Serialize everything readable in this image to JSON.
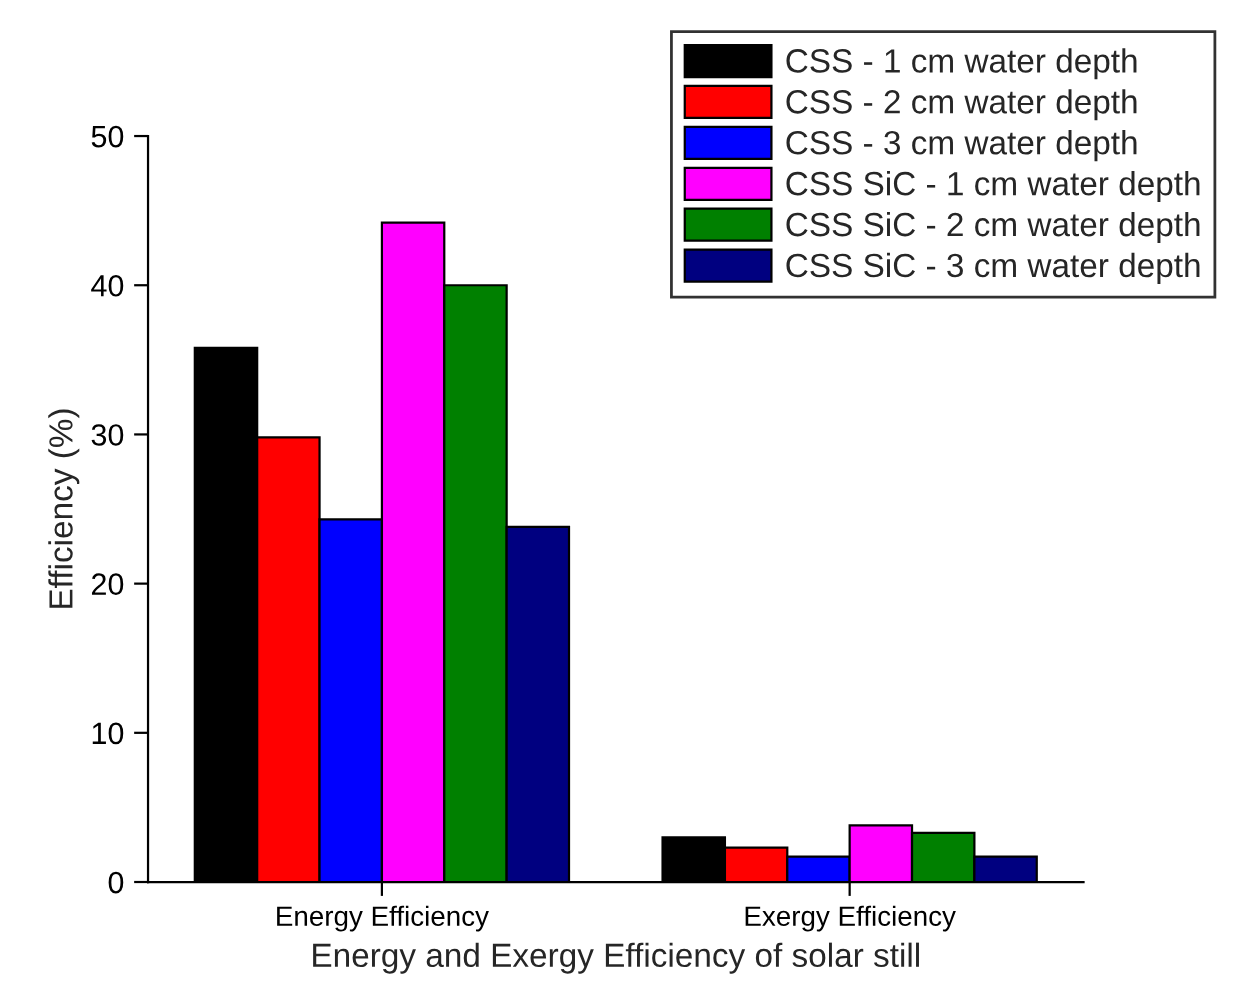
{
  "chart_data": {
    "type": "bar",
    "xlabel": "Energy and Exergy Efficiency of solar still",
    "ylabel": "Efficiency (%)",
    "categories": [
      "Energy Efficiency",
      "Exergy Efficiency"
    ],
    "series": [
      {
        "name": "CSS - 1 cm water depth",
        "color": "#000000",
        "values": [
          35.8,
          3.0
        ]
      },
      {
        "name": "CSS - 2 cm water depth",
        "color": "#ff0000",
        "values": [
          29.8,
          2.3
        ]
      },
      {
        "name": "CSS - 3 cm water depth",
        "color": "#0000ff",
        "values": [
          24.3,
          1.7
        ]
      },
      {
        "name": "CSS SiC - 1 cm water depth",
        "color": "#ff00ff",
        "values": [
          44.2,
          3.8
        ]
      },
      {
        "name": "CSS SiC - 2 cm water depth",
        "color": "#008000",
        "values": [
          40.0,
          3.3
        ]
      },
      {
        "name": "CSS SiC - 3 cm water depth",
        "color": "#000080",
        "values": [
          23.8,
          1.7
        ]
      }
    ],
    "ylim": [
      0,
      50
    ],
    "yticks": [
      0,
      10,
      20,
      30,
      40,
      50
    ],
    "grid": false,
    "legend": "top right"
  }
}
